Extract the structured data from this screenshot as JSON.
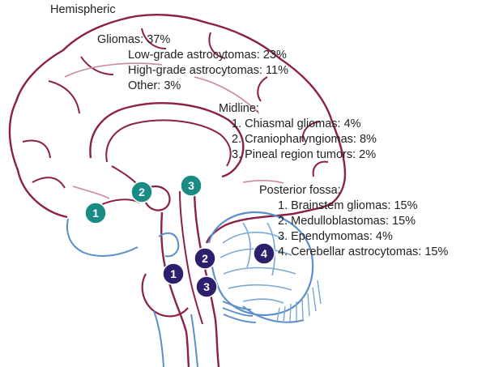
{
  "colors": {
    "brain_outline": "#8b2146",
    "brain_inner": "#c98aa0",
    "brainstem_outline": "#5b8fc9",
    "cerebellum_lines": "#7aa7d6",
    "teal_marker": "#1a8a85",
    "navy_marker": "#2b1f6e",
    "text": "#222222"
  },
  "hemispheric": {
    "heading": "Hemispheric",
    "gliomas": "Gliomas: 37%",
    "low_grade": "Low-grade astrocytomas: 23%",
    "high_grade": "High-grade astrocytomas: 11%",
    "other": "Other: 3%"
  },
  "midline": {
    "heading": "Midline:",
    "items": [
      "1. Chiasmal gliomas: 4%",
      "2. Craniopharyngiomas: 8%",
      "3. Pineal region tumors: 2%"
    ]
  },
  "posterior_fossa": {
    "heading": "Posterior fossa:",
    "items": [
      "1. Brainstem gliomas: 15%",
      "2. Medulloblastomas: 15%",
      "3. Ependymomas: 4%",
      "4. Cerebellar astrocytomas: 15%"
    ]
  },
  "markers": {
    "teal": [
      "1",
      "2",
      "3"
    ],
    "navy": [
      "1",
      "2",
      "3",
      "4"
    ]
  }
}
